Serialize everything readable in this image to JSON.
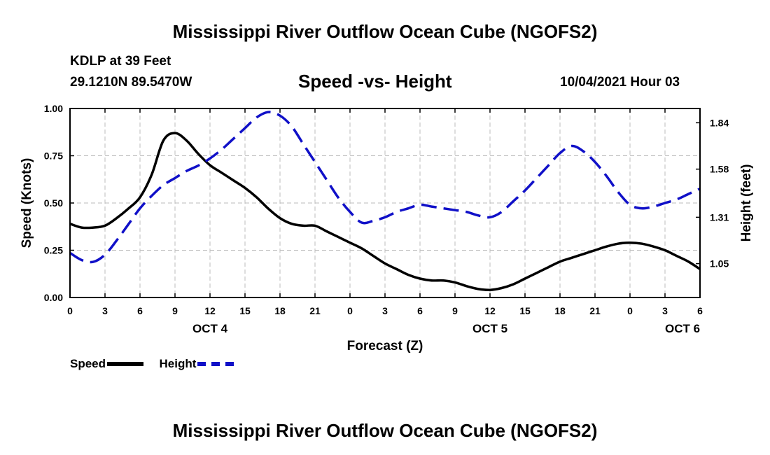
{
  "header": {
    "title": "Mississippi River Outflow Ocean Cube (NGOFS2)",
    "station": "KDLP at 39 Feet",
    "coords": "29.1210N  89.5470W",
    "subtitle": "Speed -vs- Height",
    "datetime": "10/04/2021 Hour 03"
  },
  "footer": {
    "title": "Mississippi River Outflow Ocean Cube (NGOFS2)"
  },
  "legend": {
    "speed_label": "Speed",
    "height_label": "Height"
  },
  "chart_data": {
    "type": "line",
    "title": "Speed -vs- Height",
    "xlabel": "Forecast (Z)",
    "ylabel": "Speed (Knots)",
    "y2label": "Height (feet)",
    "x_range_hours": [
      0,
      54
    ],
    "ylim": [
      0,
      1
    ],
    "y2lim": [
      0.86,
      1.92
    ],
    "grid": true,
    "legend_position": "bottom-left",
    "x_ticks": [
      {
        "h": 0,
        "label": "0"
      },
      {
        "h": 3,
        "label": "3"
      },
      {
        "h": 6,
        "label": "6"
      },
      {
        "h": 9,
        "label": "9"
      },
      {
        "h": 12,
        "label": "12"
      },
      {
        "h": 15,
        "label": "15"
      },
      {
        "h": 18,
        "label": "18"
      },
      {
        "h": 21,
        "label": "21"
      },
      {
        "h": 24,
        "label": "0"
      },
      {
        "h": 27,
        "label": "3"
      },
      {
        "h": 30,
        "label": "6"
      },
      {
        "h": 33,
        "label": "9"
      },
      {
        "h": 36,
        "label": "12"
      },
      {
        "h": 39,
        "label": "15"
      },
      {
        "h": 42,
        "label": "18"
      },
      {
        "h": 45,
        "label": "21"
      },
      {
        "h": 48,
        "label": "0"
      },
      {
        "h": 51,
        "label": "3"
      },
      {
        "h": 54,
        "label": "6"
      }
    ],
    "date_labels": [
      {
        "h": 12,
        "label": "OCT 4"
      },
      {
        "h": 36,
        "label": "OCT 5"
      },
      {
        "h": 52.5,
        "label": "OCT 6"
      }
    ],
    "y_ticks": [
      {
        "v": 0,
        "label": "0.00"
      },
      {
        "v": 0.25,
        "label": "0.25"
      },
      {
        "v": 0.5,
        "label": "0.50"
      },
      {
        "v": 0.75,
        "label": "0.75"
      },
      {
        "v": 1.0,
        "label": "1.00"
      }
    ],
    "y2_ticks": [
      {
        "v": 1.05,
        "label": "1.05"
      },
      {
        "v": 1.31,
        "label": "1.31"
      },
      {
        "v": 1.58,
        "label": "1.58"
      },
      {
        "v": 1.84,
        "label": "1.84"
      }
    ],
    "series": [
      {
        "name": "Speed",
        "axis": "left",
        "color": "#000000",
        "style": "solid",
        "x": [
          0,
          1,
          2,
          3,
          4,
          5,
          6,
          7,
          8,
          9,
          10,
          11,
          12,
          13,
          14,
          15,
          16,
          17,
          18,
          19,
          20,
          21,
          22,
          23,
          24,
          25,
          26,
          27,
          28,
          29,
          30,
          31,
          32,
          33,
          34,
          35,
          36,
          37,
          38,
          39,
          40,
          41,
          42,
          43,
          44,
          45,
          46,
          47,
          48,
          49,
          50,
          51,
          52,
          53,
          54
        ],
        "values": [
          0.39,
          0.37,
          0.37,
          0.38,
          0.42,
          0.47,
          0.53,
          0.65,
          0.83,
          0.87,
          0.83,
          0.76,
          0.7,
          0.66,
          0.62,
          0.58,
          0.53,
          0.47,
          0.42,
          0.39,
          0.38,
          0.38,
          0.35,
          0.32,
          0.29,
          0.26,
          0.22,
          0.18,
          0.15,
          0.12,
          0.1,
          0.09,
          0.09,
          0.08,
          0.06,
          0.045,
          0.04,
          0.05,
          0.07,
          0.1,
          0.13,
          0.16,
          0.19,
          0.21,
          0.23,
          0.25,
          0.27,
          0.285,
          0.29,
          0.285,
          0.27,
          0.25,
          0.22,
          0.19,
          0.15
        ]
      },
      {
        "name": "Height",
        "axis": "right",
        "color": "#1010c8",
        "style": "dashed",
        "x": [
          0,
          1,
          2,
          3,
          4,
          5,
          6,
          7,
          8,
          9,
          10,
          11,
          12,
          13,
          14,
          15,
          16,
          17,
          18,
          19,
          20,
          21,
          22,
          23,
          24,
          25,
          26,
          27,
          28,
          29,
          30,
          31,
          32,
          33,
          34,
          35,
          36,
          37,
          38,
          39,
          40,
          41,
          42,
          43,
          44,
          45,
          46,
          47,
          48,
          49,
          50,
          51,
          52,
          53,
          54
        ],
        "values": [
          1.11,
          1.07,
          1.06,
          1.1,
          1.18,
          1.27,
          1.36,
          1.43,
          1.49,
          1.53,
          1.57,
          1.6,
          1.64,
          1.69,
          1.75,
          1.81,
          1.87,
          1.9,
          1.88,
          1.82,
          1.72,
          1.62,
          1.52,
          1.42,
          1.34,
          1.28,
          1.29,
          1.31,
          1.34,
          1.36,
          1.38,
          1.37,
          1.36,
          1.35,
          1.34,
          1.32,
          1.31,
          1.34,
          1.4,
          1.46,
          1.53,
          1.6,
          1.67,
          1.71,
          1.68,
          1.62,
          1.54,
          1.45,
          1.38,
          1.36,
          1.37,
          1.39,
          1.41,
          1.44,
          1.47
        ]
      }
    ]
  }
}
